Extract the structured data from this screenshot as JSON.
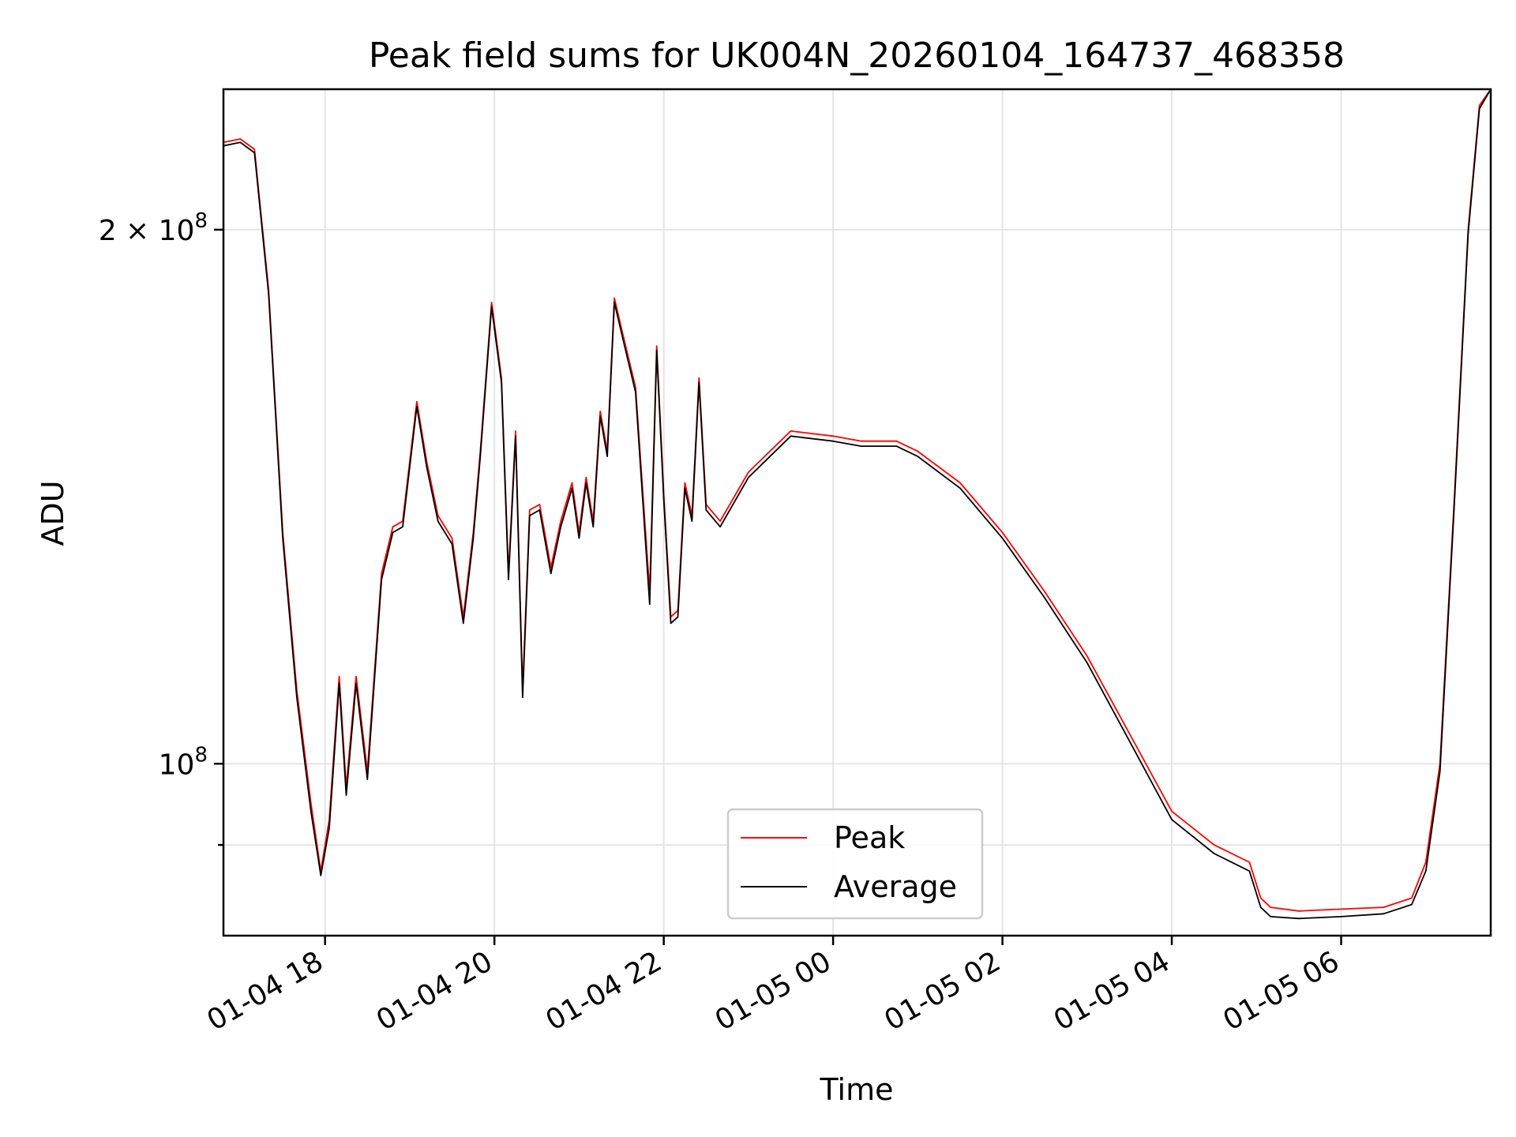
{
  "chart_data": {
    "type": "line",
    "title": "Peak field sums for UK004N_20260104_164737_468358",
    "xlabel": "Time",
    "ylabel": "ADU",
    "yscale": "log",
    "grid": true,
    "legend_placement": "lower-center",
    "xlim": [
      "2026-01-04 16:48",
      "2026-01-05 07:46"
    ],
    "ylim": [
      80000000,
      240000000
    ],
    "x_ticks": [
      {
        "value": "2026-01-04 18:00",
        "label": "01-04 18"
      },
      {
        "value": "2026-01-04 20:00",
        "label": "01-04 20"
      },
      {
        "value": "2026-01-04 22:00",
        "label": "01-04 22"
      },
      {
        "value": "2026-01-05 00:00",
        "label": "01-05 00"
      },
      {
        "value": "2026-01-05 02:00",
        "label": "01-05 02"
      },
      {
        "value": "2026-01-05 04:00",
        "label": "01-05 04"
      },
      {
        "value": "2026-01-05 06:00",
        "label": "01-05 06"
      }
    ],
    "y_major_ticks": [
      {
        "value": 100000000,
        "base": "10",
        "exp": "8"
      },
      {
        "value": 200000000,
        "base": "2 × 10",
        "exp": "8"
      }
    ],
    "y_minor_ticks": [
      90000000
    ],
    "series": [
      {
        "name": "Peak",
        "color": "#ff0000",
        "x": [
          "2026-01-04 16:48",
          "2026-01-04 17:00",
          "2026-01-04 17:10",
          "2026-01-04 17:20",
          "2026-01-04 17:30",
          "2026-01-04 17:40",
          "2026-01-04 17:50",
          "2026-01-04 17:57",
          "2026-01-04 18:03",
          "2026-01-04 18:10",
          "2026-01-04 18:15",
          "2026-01-04 18:22",
          "2026-01-04 18:30",
          "2026-01-04 18:40",
          "2026-01-04 18:48",
          "2026-01-04 18:55",
          "2026-01-04 19:05",
          "2026-01-04 19:12",
          "2026-01-04 19:20",
          "2026-01-04 19:30",
          "2026-01-04 19:38",
          "2026-01-04 19:45",
          "2026-01-04 19:50",
          "2026-01-04 19:58",
          "2026-01-04 20:05",
          "2026-01-04 20:10",
          "2026-01-04 20:15",
          "2026-01-04 20:20",
          "2026-01-04 20:25",
          "2026-01-04 20:32",
          "2026-01-04 20:40",
          "2026-01-04 20:47",
          "2026-01-04 20:55",
          "2026-01-04 21:00",
          "2026-01-04 21:05",
          "2026-01-04 21:10",
          "2026-01-04 21:15",
          "2026-01-04 21:20",
          "2026-01-04 21:25",
          "2026-01-04 21:30",
          "2026-01-04 21:40",
          "2026-01-04 21:50",
          "2026-01-04 21:55",
          "2026-01-04 22:00",
          "2026-01-04 22:05",
          "2026-01-04 22:10",
          "2026-01-04 22:15",
          "2026-01-04 22:20",
          "2026-01-04 22:25",
          "2026-01-04 22:30",
          "2026-01-04 22:40",
          "2026-01-04 23:00",
          "2026-01-04 23:30",
          "2026-01-05 00:00",
          "2026-01-05 00:20",
          "2026-01-05 00:30",
          "2026-01-05 00:45",
          "2026-01-05 01:00",
          "2026-01-05 01:30",
          "2026-01-05 02:00",
          "2026-01-05 02:30",
          "2026-01-05 03:00",
          "2026-01-05 03:30",
          "2026-01-05 04:00",
          "2026-01-05 04:30",
          "2026-01-05 04:55",
          "2026-01-05 05:03",
          "2026-01-05 05:10",
          "2026-01-05 05:30",
          "2026-01-05 06:00",
          "2026-01-05 06:30",
          "2026-01-05 06:50",
          "2026-01-05 07:00",
          "2026-01-05 07:10",
          "2026-01-05 07:20",
          "2026-01-05 07:30",
          "2026-01-05 07:38",
          "2026-01-05 07:46"
        ],
        "values": [
          224000000,
          225000000,
          222000000,
          185000000,
          135000000,
          110000000,
          95000000,
          87000000,
          93000000,
          112000000,
          97000000,
          112000000,
          99000000,
          128000000,
          136000000,
          137000000,
          160000000,
          148000000,
          138000000,
          134000000,
          121000000,
          135000000,
          150000000,
          182000000,
          165000000,
          128000000,
          154000000,
          110000000,
          139000000,
          140000000,
          129000000,
          137000000,
          144000000,
          135000000,
          145000000,
          137000000,
          158000000,
          150000000,
          183000000,
          176000000,
          163000000,
          125000000,
          172000000,
          142000000,
          121000000,
          122000000,
          144000000,
          138000000,
          165000000,
          140000000,
          137000000,
          146000000,
          154000000,
          153000000,
          152000000,
          152000000,
          152000000,
          150000000,
          144000000,
          135000000,
          125000000,
          115000000,
          104000000,
          94000000,
          90000000,
          88000000,
          84000000,
          83000000,
          82600000,
          82800000,
          83000000,
          84000000,
          88000000,
          100000000,
          140000000,
          200000000,
          235000000,
          240000000
        ]
      },
      {
        "name": "Average",
        "color": "#000000",
        "x": [
          "2026-01-04 16:48",
          "2026-01-04 17:00",
          "2026-01-04 17:10",
          "2026-01-04 17:20",
          "2026-01-04 17:30",
          "2026-01-04 17:40",
          "2026-01-04 17:50",
          "2026-01-04 17:57",
          "2026-01-04 18:03",
          "2026-01-04 18:10",
          "2026-01-04 18:15",
          "2026-01-04 18:22",
          "2026-01-04 18:30",
          "2026-01-04 18:40",
          "2026-01-04 18:48",
          "2026-01-04 18:55",
          "2026-01-04 19:05",
          "2026-01-04 19:12",
          "2026-01-04 19:20",
          "2026-01-04 19:30",
          "2026-01-04 19:38",
          "2026-01-04 19:45",
          "2026-01-04 19:50",
          "2026-01-04 19:58",
          "2026-01-04 20:05",
          "2026-01-04 20:10",
          "2026-01-04 20:15",
          "2026-01-04 20:20",
          "2026-01-04 20:25",
          "2026-01-04 20:32",
          "2026-01-04 20:40",
          "2026-01-04 20:47",
          "2026-01-04 20:55",
          "2026-01-04 21:00",
          "2026-01-04 21:05",
          "2026-01-04 21:10",
          "2026-01-04 21:15",
          "2026-01-04 21:20",
          "2026-01-04 21:25",
          "2026-01-04 21:30",
          "2026-01-04 21:40",
          "2026-01-04 21:50",
          "2026-01-04 21:55",
          "2026-01-04 22:00",
          "2026-01-04 22:05",
          "2026-01-04 22:10",
          "2026-01-04 22:15",
          "2026-01-04 22:20",
          "2026-01-04 22:25",
          "2026-01-04 22:30",
          "2026-01-04 22:40",
          "2026-01-04 23:00",
          "2026-01-04 23:30",
          "2026-01-05 00:00",
          "2026-01-05 00:20",
          "2026-01-05 00:30",
          "2026-01-05 00:45",
          "2026-01-05 01:00",
          "2026-01-05 01:30",
          "2026-01-05 02:00",
          "2026-01-05 02:30",
          "2026-01-05 03:00",
          "2026-01-05 03:30",
          "2026-01-05 04:00",
          "2026-01-05 04:30",
          "2026-01-05 04:55",
          "2026-01-05 05:03",
          "2026-01-05 05:10",
          "2026-01-05 05:30",
          "2026-01-05 06:00",
          "2026-01-05 06:30",
          "2026-01-05 06:50",
          "2026-01-05 07:00",
          "2026-01-05 07:10",
          "2026-01-05 07:20",
          "2026-01-05 07:30",
          "2026-01-05 07:38",
          "2026-01-05 07:46"
        ],
        "values": [
          223000000,
          224000000,
          221000000,
          184000000,
          134000000,
          109000000,
          94000000,
          86500000,
          92000000,
          111000000,
          96000000,
          111000000,
          98000000,
          127000000,
          135000000,
          136000000,
          159000000,
          147000000,
          137000000,
          133000000,
          120000000,
          134000000,
          149000000,
          181000000,
          164000000,
          127000000,
          153000000,
          109000000,
          138000000,
          139000000,
          128000000,
          136000000,
          143000000,
          134000000,
          144000000,
          136000000,
          157000000,
          149000000,
          182000000,
          175000000,
          162000000,
          123000000,
          171000000,
          141000000,
          120000000,
          121000000,
          143000000,
          137000000,
          164000000,
          139000000,
          136000000,
          145000000,
          153000000,
          152000000,
          151000000,
          151000000,
          151000000,
          149000000,
          143000000,
          134000000,
          124000000,
          114000000,
          103000000,
          93000000,
          89000000,
          87000000,
          83000000,
          82000000,
          81800000,
          82000000,
          82300000,
          83300000,
          87000000,
          99000000,
          139000000,
          199000000,
          234000000,
          240000000
        ]
      }
    ]
  }
}
